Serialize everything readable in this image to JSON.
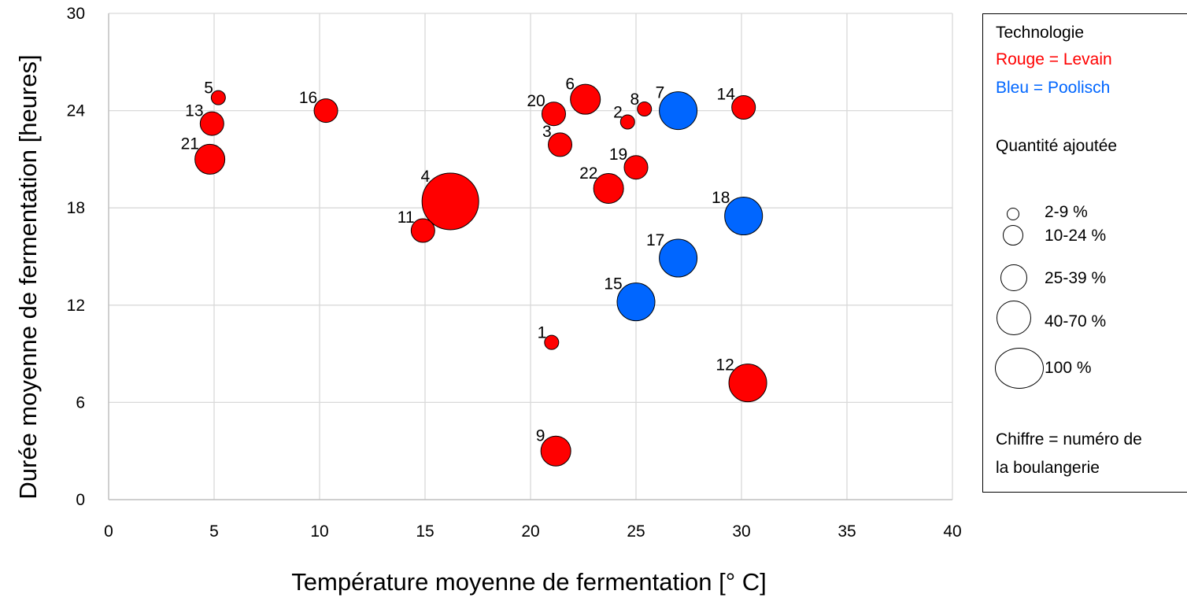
{
  "colors": {
    "levain": "#ff0000",
    "poolisch": "#0066ff",
    "grid": "#d9d9d9",
    "axis": "#bfbfbf"
  },
  "chart_data": {
    "type": "scatter",
    "xlabel": "Température moyenne de fermentation [° C]",
    "ylabel": "Durée moyenne de fermentation [heures]",
    "xlim": [
      0,
      40
    ],
    "ylim": [
      0,
      30
    ],
    "xticks": [
      0,
      5,
      10,
      15,
      20,
      25,
      30,
      35,
      40
    ],
    "yticks": [
      0,
      6,
      12,
      18,
      24,
      30
    ],
    "grid": true,
    "legend_position": "right",
    "points": [
      {
        "label": "1",
        "x": 21.0,
        "y": 9.7,
        "size_class": "2-9 %",
        "technology": "Levain"
      },
      {
        "label": "2",
        "x": 24.6,
        "y": 23.3,
        "size_class": "2-9 %",
        "technology": "Levain"
      },
      {
        "label": "3",
        "x": 21.4,
        "y": 21.9,
        "size_class": "10-24 %",
        "technology": "Levain"
      },
      {
        "label": "4",
        "x": 16.2,
        "y": 18.4,
        "size_class": "100 %",
        "technology": "Levain"
      },
      {
        "label": "5",
        "x": 5.2,
        "y": 24.8,
        "size_class": "2-9 %",
        "technology": "Levain"
      },
      {
        "label": "6",
        "x": 22.6,
        "y": 24.7,
        "size_class": "25-39 %",
        "technology": "Levain"
      },
      {
        "label": "7",
        "x": 27.0,
        "y": 24.0,
        "size_class": "40-70 %",
        "technology": "Poolisch"
      },
      {
        "label": "8",
        "x": 25.4,
        "y": 24.1,
        "size_class": "2-9 %",
        "technology": "Levain"
      },
      {
        "label": "9",
        "x": 21.2,
        "y": 3.0,
        "size_class": "25-39 %",
        "technology": "Levain"
      },
      {
        "label": "11",
        "x": 14.9,
        "y": 16.6,
        "size_class": "10-24 %",
        "technology": "Levain"
      },
      {
        "label": "12",
        "x": 30.3,
        "y": 7.2,
        "size_class": "40-70 %",
        "technology": "Levain"
      },
      {
        "label": "13",
        "x": 4.9,
        "y": 23.2,
        "size_class": "10-24 %",
        "technology": "Levain"
      },
      {
        "label": "14",
        "x": 30.1,
        "y": 24.2,
        "size_class": "10-24 %",
        "technology": "Levain"
      },
      {
        "label": "15",
        "x": 25.0,
        "y": 12.2,
        "size_class": "40-70 %",
        "technology": "Poolisch"
      },
      {
        "label": "16",
        "x": 10.3,
        "y": 24.0,
        "size_class": "10-24 %",
        "technology": "Levain"
      },
      {
        "label": "17",
        "x": 27.0,
        "y": 14.9,
        "size_class": "40-70 %",
        "technology": "Poolisch"
      },
      {
        "label": "18",
        "x": 30.1,
        "y": 17.5,
        "size_class": "40-70 %",
        "technology": "Poolisch"
      },
      {
        "label": "19",
        "x": 25.0,
        "y": 20.5,
        "size_class": "10-24 %",
        "technology": "Levain"
      },
      {
        "label": "20",
        "x": 21.1,
        "y": 23.8,
        "size_class": "10-24 %",
        "technology": "Levain"
      },
      {
        "label": "21",
        "x": 4.8,
        "y": 21.0,
        "size_class": "25-39 %",
        "technology": "Levain"
      },
      {
        "label": "22",
        "x": 23.7,
        "y": 19.2,
        "size_class": "25-39 %",
        "technology": "Levain"
      }
    ]
  },
  "legend": {
    "title": "Technologie",
    "levain_text": "Rouge = Levain",
    "poolisch_text": "Bleu = Poolisch",
    "size_title": "Quantité ajoutée",
    "sizes": [
      "2-9 %",
      "10-24 %",
      "25-39 %",
      "40-70 %",
      "100 %"
    ],
    "note_line1": "Chiffre = numéro de",
    "note_line2": "la boulangerie"
  }
}
